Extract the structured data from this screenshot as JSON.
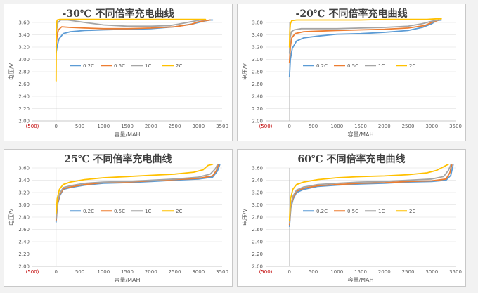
{
  "chart_data": [
    {
      "type": "line",
      "title": "-30℃ 不同倍率充电曲线",
      "xlabel": "容量/MAH",
      "ylabel": "电压/V",
      "xlim": [
        -500,
        3500
      ],
      "ylim": [
        2.0,
        3.6
      ],
      "xticks": [
        -500,
        0,
        500,
        1000,
        1500,
        2000,
        2500,
        3000,
        3500
      ],
      "xtick_labels": [
        "(500)",
        "0",
        "500",
        "1000",
        "1500",
        "2000",
        "2500",
        "3000",
        "3500"
      ],
      "yticks": [
        2.0,
        2.2,
        2.4,
        2.6,
        2.8,
        3.0,
        3.2,
        3.4,
        3.6
      ],
      "ytick_labels": [
        "2.00",
        "2.20",
        "2.40",
        "2.60",
        "2.80",
        "3.00",
        "3.20",
        "3.40",
        "3.60"
      ],
      "legend_position": "center",
      "series": [
        {
          "name": "0.2C",
          "color": "#5b9bd5",
          "x": [
            0,
            20,
            60,
            150,
            300,
            600,
            1000,
            1500,
            2000,
            2500,
            2900,
            3100,
            3250,
            3300
          ],
          "y": [
            3.1,
            3.2,
            3.33,
            3.42,
            3.45,
            3.47,
            3.48,
            3.49,
            3.5,
            3.53,
            3.58,
            3.62,
            3.64,
            3.64
          ]
        },
        {
          "name": "0.5C",
          "color": "#ed7d31",
          "x": [
            0,
            20,
            50,
            120,
            300,
            600,
            1000,
            1500,
            2000,
            2500,
            2850,
            3000,
            3150,
            3250
          ],
          "y": [
            3.2,
            3.38,
            3.48,
            3.53,
            3.52,
            3.51,
            3.5,
            3.5,
            3.51,
            3.53,
            3.57,
            3.61,
            3.63,
            3.64
          ]
        },
        {
          "name": "1C",
          "color": "#a5a5a5",
          "x": [
            0,
            15,
            40,
            100,
            250,
            600,
            1000,
            1500,
            2000,
            2400,
            2700,
            2900,
            3050,
            3150
          ],
          "y": [
            3.3,
            3.5,
            3.6,
            3.64,
            3.64,
            3.6,
            3.56,
            3.54,
            3.54,
            3.55,
            3.59,
            3.62,
            3.64,
            3.64
          ]
        },
        {
          "name": "2C",
          "color": "#ffc000",
          "x": [
            0,
            5,
            12,
            25,
            80,
            300,
            800,
            1500,
            2200,
            2800,
            3000,
            3150
          ],
          "y": [
            2.65,
            3.4,
            3.6,
            3.64,
            3.65,
            3.65,
            3.65,
            3.65,
            3.65,
            3.65,
            3.65,
            3.65
          ]
        }
      ]
    },
    {
      "type": "line",
      "title": "-20℃ 不同倍率充电曲线",
      "xlabel": "容量/MAH",
      "ylabel": "电压/V",
      "xlim": [
        -500,
        3500
      ],
      "ylim": [
        2.0,
        3.6
      ],
      "xticks": [
        -500,
        0,
        500,
        1000,
        1500,
        2000,
        2500,
        3000,
        3500
      ],
      "xtick_labels": [
        "(500)",
        "0",
        "500",
        "1000",
        "1500",
        "2000",
        "2500",
        "3000",
        "3500"
      ],
      "yticks": [
        2.0,
        2.2,
        2.4,
        2.6,
        2.8,
        3.0,
        3.2,
        3.4,
        3.6
      ],
      "ytick_labels": [
        "2.00",
        "2.20",
        "2.40",
        "2.60",
        "2.80",
        "3.00",
        "3.20",
        "3.40",
        "3.60"
      ],
      "legend_position": "center",
      "series": [
        {
          "name": "0.2C",
          "color": "#5b9bd5",
          "x": [
            0,
            20,
            60,
            150,
            300,
            600,
            1000,
            1500,
            2000,
            2500,
            2800,
            3000,
            3100,
            3200
          ],
          "y": [
            2.72,
            3.0,
            3.18,
            3.3,
            3.35,
            3.38,
            3.41,
            3.42,
            3.44,
            3.47,
            3.52,
            3.58,
            3.63,
            3.64
          ]
        },
        {
          "name": "0.5C",
          "color": "#ed7d31",
          "x": [
            0,
            20,
            50,
            120,
            300,
            600,
            1000,
            1500,
            2000,
            2500,
            2850,
            3000,
            3150
          ],
          "y": [
            2.95,
            3.2,
            3.35,
            3.42,
            3.45,
            3.46,
            3.47,
            3.48,
            3.49,
            3.51,
            3.55,
            3.6,
            3.64
          ]
        },
        {
          "name": "1C",
          "color": "#a5a5a5",
          "x": [
            0,
            15,
            40,
            100,
            250,
            600,
            1000,
            1500,
            2000,
            2500,
            2800,
            3000,
            3150
          ],
          "y": [
            3.1,
            3.35,
            3.45,
            3.48,
            3.5,
            3.5,
            3.5,
            3.51,
            3.52,
            3.54,
            3.58,
            3.62,
            3.64
          ]
        },
        {
          "name": "2C",
          "color": "#ffc000",
          "x": [
            0,
            8,
            20,
            50,
            150,
            500,
            1000,
            1500,
            2000,
            2500,
            2900,
            3100,
            3200
          ],
          "y": [
            3.2,
            3.45,
            3.58,
            3.63,
            3.64,
            3.64,
            3.64,
            3.64,
            3.65,
            3.65,
            3.65,
            3.66,
            3.66
          ]
        }
      ]
    },
    {
      "type": "line",
      "title": "25℃ 不同倍率充电曲线",
      "xlabel": "容量/MAH",
      "ylabel": "电压/V",
      "xlim": [
        -500,
        3500
      ],
      "ylim": [
        2.0,
        3.6
      ],
      "xticks": [
        -500,
        0,
        500,
        1000,
        1500,
        2000,
        2500,
        3000,
        3500
      ],
      "xtick_labels": [
        "(500)",
        "0",
        "500",
        "1000",
        "1500",
        "2000",
        "2500",
        "3000",
        "3500"
      ],
      "yticks": [
        2.0,
        2.2,
        2.4,
        2.6,
        2.8,
        3.0,
        3.2,
        3.4,
        3.6
      ],
      "ytick_labels": [
        "2.00",
        "2.20",
        "2.40",
        "2.60",
        "2.80",
        "3.00",
        "3.20",
        "3.40",
        "3.60"
      ],
      "legend_position": "center",
      "series": [
        {
          "name": "0.2C",
          "color": "#5b9bd5",
          "x": [
            0,
            30,
            80,
            150,
            300,
            600,
            1000,
            1500,
            2000,
            2500,
            3000,
            3300,
            3400,
            3450
          ],
          "y": [
            2.72,
            3.0,
            3.15,
            3.25,
            3.28,
            3.32,
            3.35,
            3.36,
            3.38,
            3.4,
            3.42,
            3.45,
            3.55,
            3.65
          ]
        },
        {
          "name": "0.5C",
          "color": "#ed7d31",
          "x": [
            0,
            30,
            80,
            150,
            300,
            600,
            1000,
            1500,
            2000,
            2500,
            3000,
            3300,
            3380,
            3420
          ],
          "y": [
            2.75,
            3.02,
            3.17,
            3.26,
            3.29,
            3.33,
            3.36,
            3.37,
            3.39,
            3.41,
            3.43,
            3.47,
            3.56,
            3.65
          ]
        },
        {
          "name": "1C",
          "color": "#a5a5a5",
          "x": [
            0,
            30,
            80,
            150,
            300,
            600,
            1000,
            1500,
            2000,
            2500,
            3000,
            3250,
            3350,
            3400
          ],
          "y": [
            2.78,
            3.05,
            3.19,
            3.28,
            3.31,
            3.35,
            3.37,
            3.38,
            3.4,
            3.42,
            3.45,
            3.5,
            3.58,
            3.65
          ]
        },
        {
          "name": "2C",
          "color": "#ffc000",
          "x": [
            0,
            25,
            70,
            150,
            300,
            600,
            1000,
            1500,
            2000,
            2500,
            2900,
            3100,
            3200,
            3300
          ],
          "y": [
            2.85,
            3.1,
            3.25,
            3.33,
            3.37,
            3.41,
            3.44,
            3.46,
            3.48,
            3.5,
            3.53,
            3.57,
            3.64,
            3.66
          ]
        }
      ]
    },
    {
      "type": "line",
      "title": "60℃ 不同倍率充电曲线",
      "xlabel": "容量/MAH",
      "ylabel": "电压/V",
      "xlim": [
        -500,
        3500
      ],
      "ylim": [
        2.0,
        3.6
      ],
      "xticks": [
        -500,
        0,
        500,
        1000,
        1500,
        2000,
        2500,
        3000,
        3500
      ],
      "xtick_labels": [
        "(500)",
        "0",
        "500",
        "1000",
        "1500",
        "2000",
        "2500",
        "3000",
        "3500"
      ],
      "yticks": [
        2.0,
        2.2,
        2.4,
        2.6,
        2.8,
        3.0,
        3.2,
        3.4,
        3.6
      ],
      "ytick_labels": [
        "2.00",
        "2.20",
        "2.40",
        "2.60",
        "2.80",
        "3.00",
        "3.20",
        "3.40",
        "3.60"
      ],
      "legend_position": "center",
      "series": [
        {
          "name": "0.2C",
          "color": "#5b9bd5",
          "x": [
            0,
            30,
            80,
            150,
            300,
            600,
            1000,
            1500,
            2000,
            2500,
            3000,
            3300,
            3400,
            3450
          ],
          "y": [
            2.65,
            2.95,
            3.1,
            3.2,
            3.25,
            3.3,
            3.32,
            3.34,
            3.35,
            3.37,
            3.38,
            3.4,
            3.48,
            3.65
          ]
        },
        {
          "name": "0.5C",
          "color": "#ed7d31",
          "x": [
            0,
            30,
            80,
            150,
            300,
            600,
            1000,
            1500,
            2000,
            2500,
            3000,
            3300,
            3380,
            3420
          ],
          "y": [
            2.68,
            2.98,
            3.12,
            3.22,
            3.27,
            3.31,
            3.33,
            3.35,
            3.36,
            3.38,
            3.39,
            3.42,
            3.52,
            3.65
          ]
        },
        {
          "name": "1C",
          "color": "#a5a5a5",
          "x": [
            0,
            30,
            80,
            150,
            300,
            600,
            1000,
            1500,
            2000,
            2500,
            3000,
            3250,
            3350,
            3400
          ],
          "y": [
            2.7,
            3.0,
            3.15,
            3.24,
            3.29,
            3.33,
            3.35,
            3.37,
            3.38,
            3.4,
            3.42,
            3.46,
            3.56,
            3.65
          ]
        },
        {
          "name": "2C",
          "color": "#ffc000",
          "x": [
            0,
            25,
            70,
            150,
            300,
            600,
            1000,
            1500,
            2000,
            2500,
            2900,
            3100,
            3250,
            3350
          ],
          "y": [
            2.75,
            3.1,
            3.25,
            3.33,
            3.37,
            3.41,
            3.44,
            3.46,
            3.47,
            3.49,
            3.52,
            3.56,
            3.62,
            3.66
          ]
        }
      ]
    }
  ]
}
